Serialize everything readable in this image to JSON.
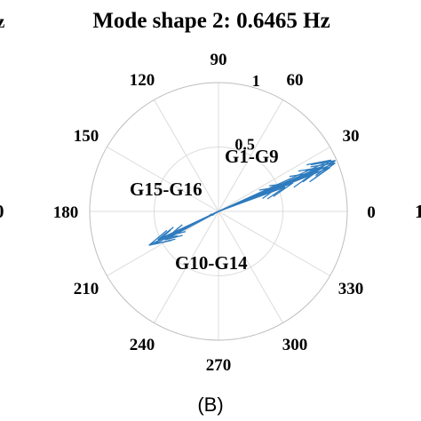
{
  "chart_data": {
    "type": "polar-compass",
    "title": "Mode shape 2: 0.6465 Hz",
    "panel_label": "(B)",
    "edge_fragments": {
      "left_title": "z",
      "left_tick": "0",
      "right_tick": "1"
    },
    "theta_ticks": [
      "0",
      "30",
      "60",
      "90",
      "120",
      "150",
      "180",
      "210",
      "240",
      "270",
      "300",
      "330"
    ],
    "theta_tick_degrees": [
      0,
      30,
      60,
      90,
      120,
      150,
      180,
      210,
      240,
      270,
      300,
      330
    ],
    "r_ticks": [
      "0.5",
      "1"
    ],
    "r_tick_values": [
      0.5,
      1
    ],
    "rlim": [
      0,
      1
    ],
    "grid": true,
    "series_color": "#2E7BBE",
    "group_labels": [
      {
        "text": "G1-G9"
      },
      {
        "text": "G15-G16"
      },
      {
        "text": "G10-G14"
      }
    ],
    "vectors": [
      {
        "group": "G1-G9",
        "magnitude": 0.99,
        "angle_deg": 23.5
      },
      {
        "group": "G1-G9",
        "magnitude": 0.98,
        "angle_deg": 22.5
      },
      {
        "group": "G1-G9",
        "magnitude": 0.96,
        "angle_deg": 24.5
      },
      {
        "group": "G1-G9",
        "magnitude": 0.93,
        "angle_deg": 21.5
      },
      {
        "group": "G1-G9",
        "magnitude": 0.88,
        "angle_deg": 23
      },
      {
        "group": "G1-G9",
        "magnitude": 0.8,
        "angle_deg": 22
      },
      {
        "group": "G1-G9",
        "magnitude": 0.62,
        "angle_deg": 21
      },
      {
        "group": "G1-G9",
        "magnitude": 0.55,
        "angle_deg": 20
      },
      {
        "group": "G1-G9",
        "magnitude": 0.5,
        "angle_deg": 22
      },
      {
        "group": "G10-G14",
        "magnitude": 0.6,
        "angle_deg": 206
      },
      {
        "group": "G10-G14",
        "magnitude": 0.56,
        "angle_deg": 207
      },
      {
        "group": "G10-G14",
        "magnitude": 0.52,
        "angle_deg": 205
      },
      {
        "group": "G10-G14",
        "magnitude": 0.47,
        "angle_deg": 208
      },
      {
        "group": "G10-G14",
        "magnitude": 0.42,
        "angle_deg": 206
      },
      {
        "group": "G15-G16",
        "magnitude": 0.08,
        "angle_deg": 205
      },
      {
        "group": "G15-G16",
        "magnitude": 0.06,
        "angle_deg": 210
      }
    ]
  }
}
